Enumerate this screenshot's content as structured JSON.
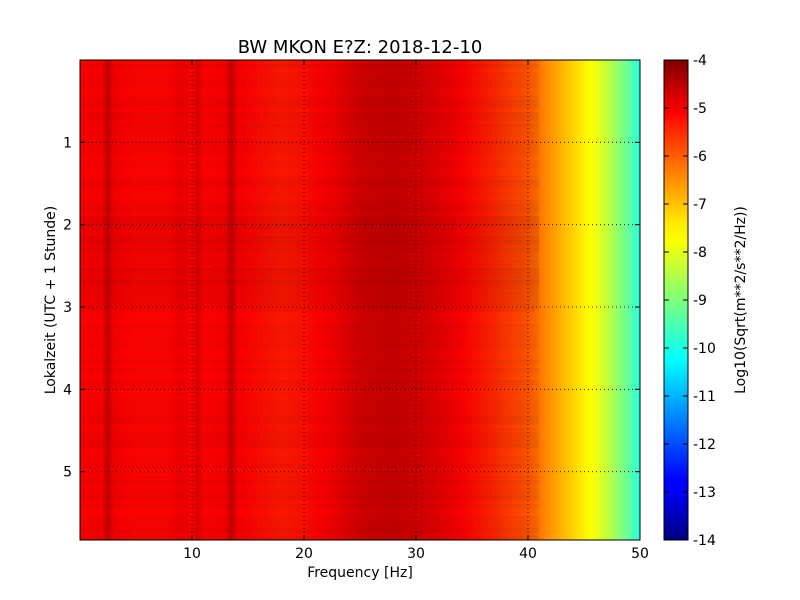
{
  "chart_data": {
    "type": "heatmap",
    "title": "BW MKON E?Z: 2018-12-10",
    "xlabel": "Frequency [Hz]",
    "ylabel": "Lokalzeit (UTC + 1 Stunde)",
    "colorbar_label": "Log10(Sqrt(m**2/s**2/Hz))",
    "colormap": "jet",
    "grid": true,
    "xlim": [
      0,
      50
    ],
    "ylim": [
      5.83,
      0
    ],
    "clim": [
      -14,
      -4
    ],
    "x_ticks": [
      "10",
      "20",
      "30",
      "40",
      "50"
    ],
    "x_tick_values": [
      10,
      20,
      30,
      40,
      50
    ],
    "y_ticks": [
      "1",
      "2",
      "3",
      "4",
      "5"
    ],
    "y_tick_values": [
      1,
      2,
      3,
      4,
      5
    ],
    "colorbar_ticks": [
      "-4",
      "-5",
      "-6",
      "-7",
      "-8",
      "-9",
      "-10",
      "-11",
      "-12",
      "-13",
      "-14"
    ],
    "colorbar_tick_values": [
      -4,
      -5,
      -6,
      -7,
      -8,
      -9,
      -10,
      -11,
      -12,
      -13,
      -14
    ],
    "frequency_profile": {
      "freq_hz": [
        0,
        2,
        2.5,
        3,
        5,
        8,
        9,
        10,
        10.5,
        11,
        13,
        13.5,
        14,
        15,
        18,
        20,
        21,
        23,
        25,
        28,
        30,
        33,
        36,
        38,
        40,
        41,
        42,
        43,
        44,
        45,
        46,
        47,
        48,
        49,
        50
      ],
      "log10_psd": [
        -5.3,
        -5.2,
        -4.7,
        -5.2,
        -5.3,
        -5.3,
        -5.1,
        -5.3,
        -4.9,
        -5.3,
        -5.2,
        -4.7,
        -5.2,
        -5.3,
        -5.5,
        -5.4,
        -5.3,
        -5.1,
        -4.8,
        -4.7,
        -4.8,
        -5.1,
        -5.5,
        -5.8,
        -6.1,
        -6.4,
        -6.7,
        -7.0,
        -7.3,
        -7.6,
        -7.9,
        -8.3,
        -8.8,
        -9.3,
        -9.9
      ]
    }
  }
}
